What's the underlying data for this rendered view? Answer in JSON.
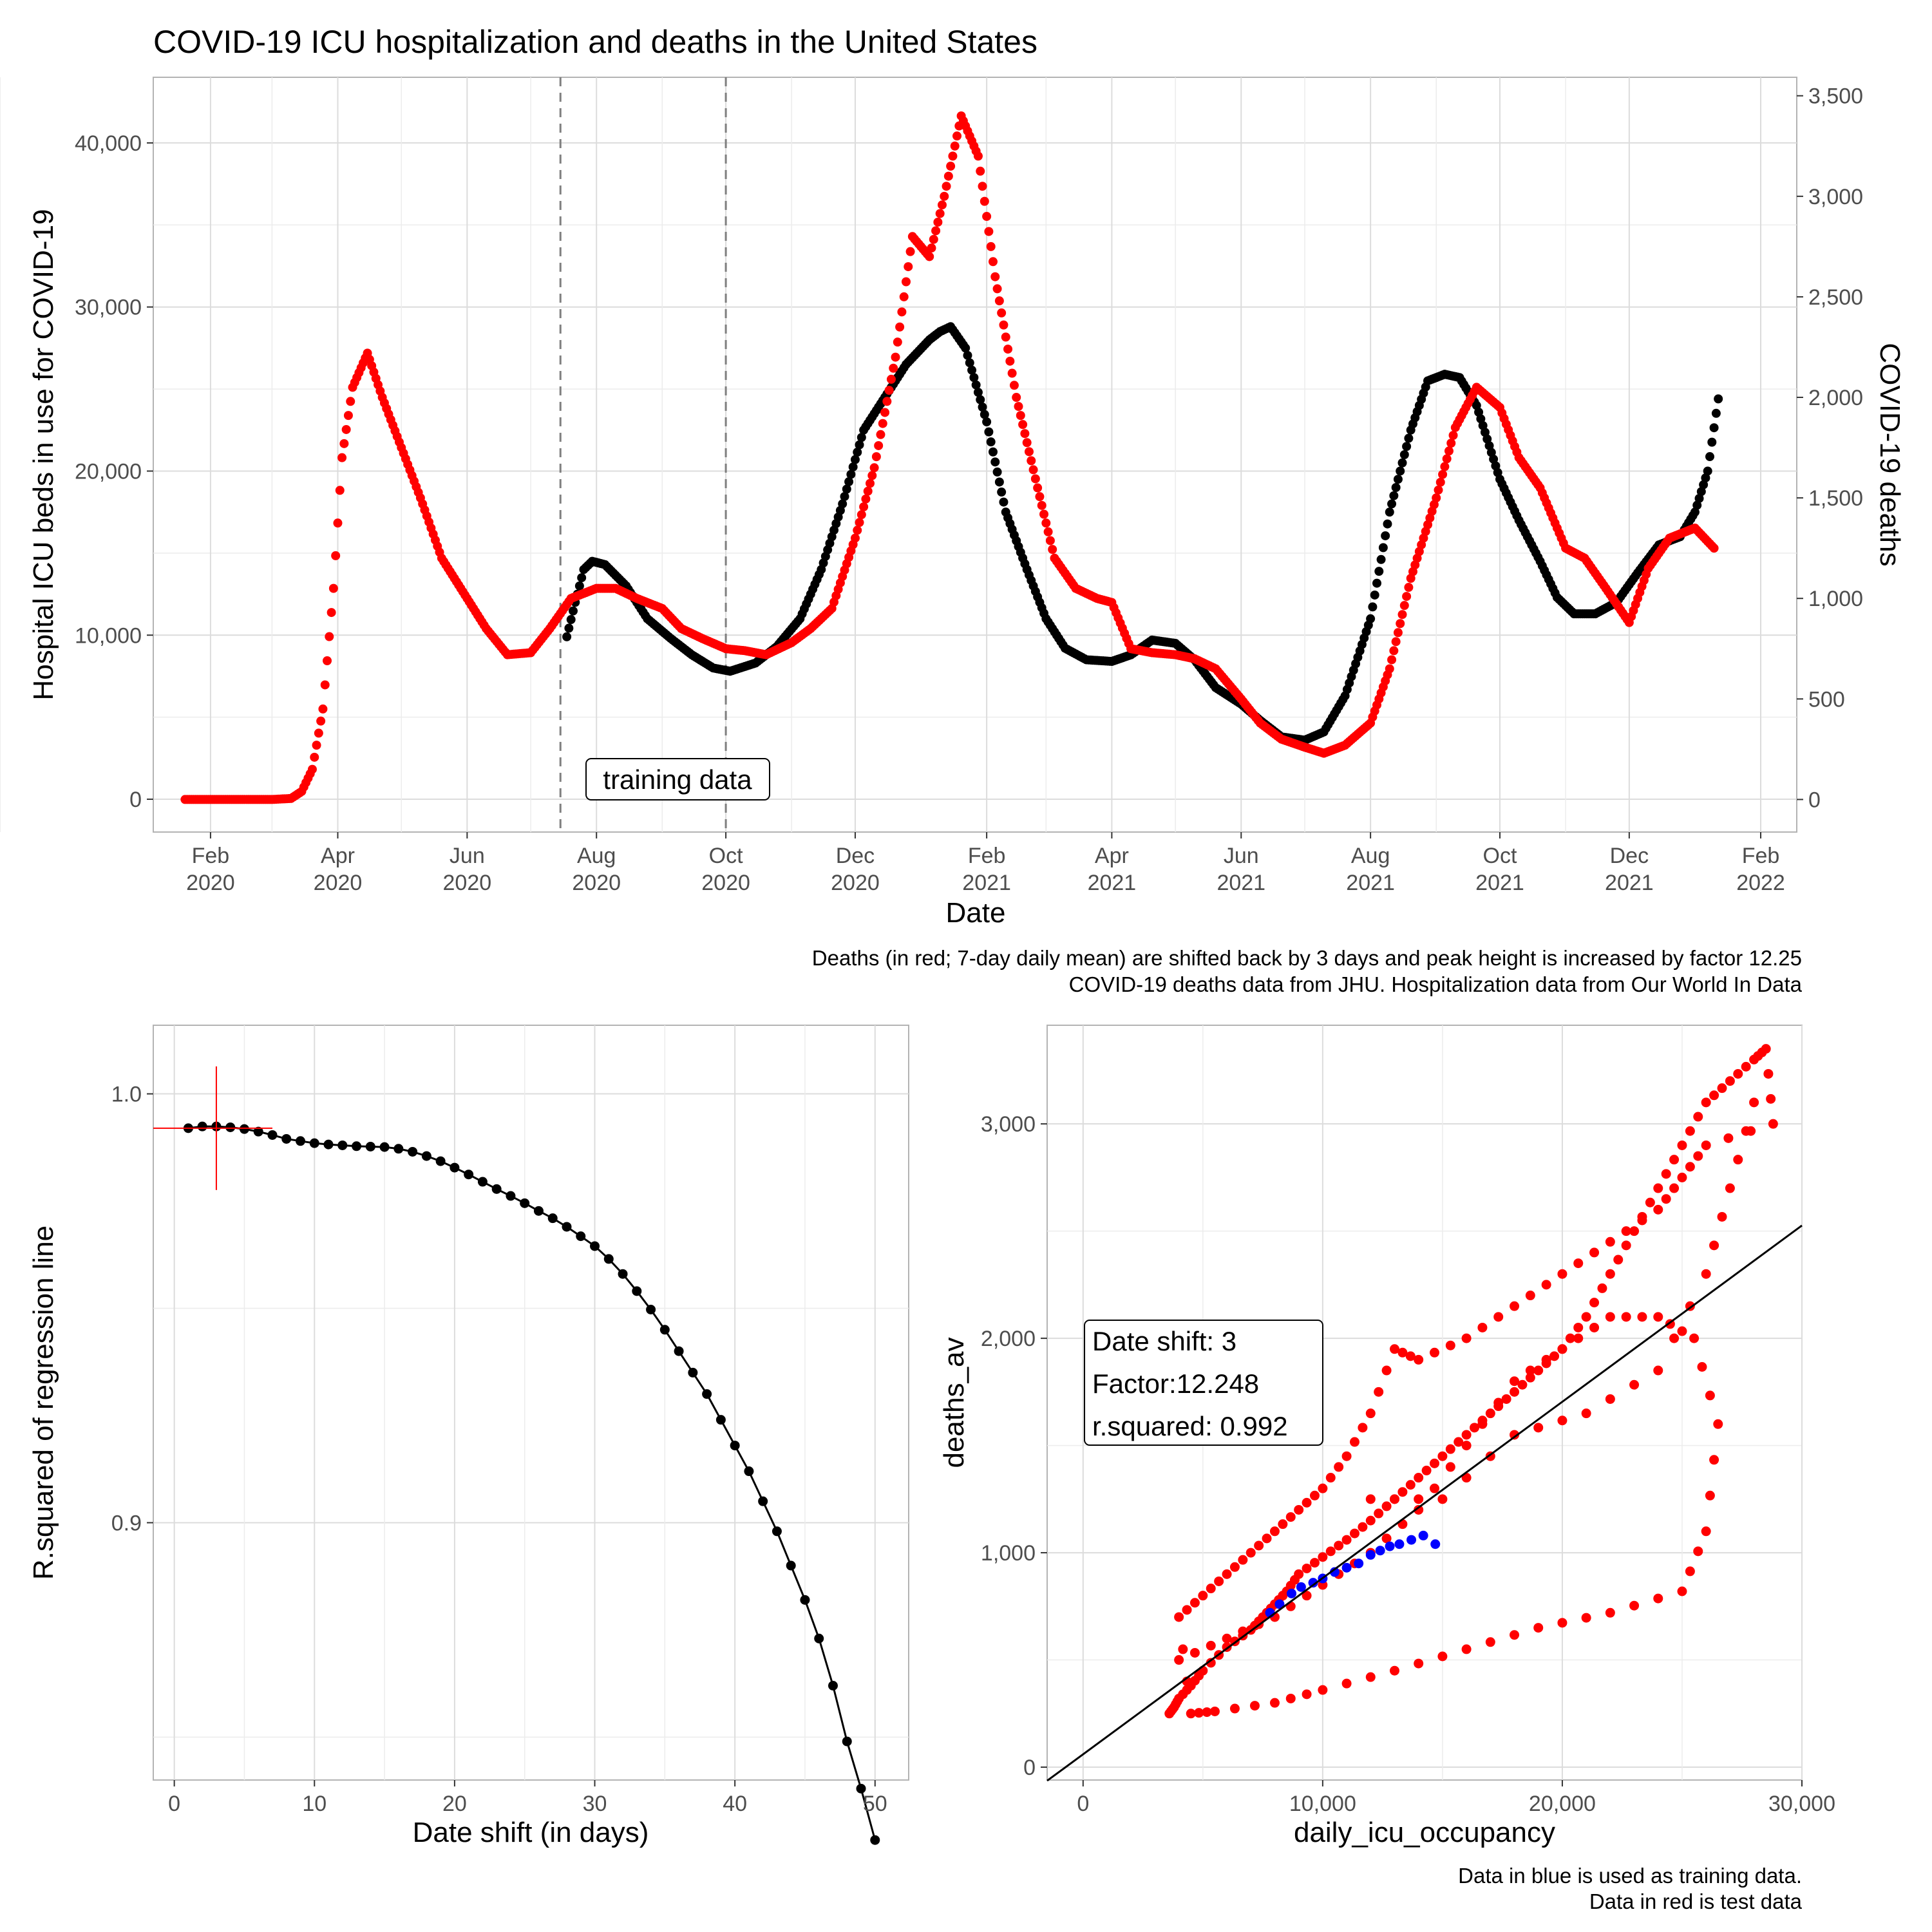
{
  "title": "COVID-19 ICU hospitalization and deaths in the United States",
  "top": {
    "xlabel": "Date",
    "ylabel_left": "Hospital ICU beds in use for COVID-19",
    "ylabel_right": "COVID-19 deaths",
    "left_ticks": [
      "0",
      "10,000",
      "20,000",
      "30,000",
      "40,000"
    ],
    "right_ticks": [
      "0",
      "500",
      "1,000",
      "1,500",
      "2,000",
      "2,500",
      "3,000",
      "3,500"
    ],
    "x_ticks": [
      {
        "m": "Feb",
        "y": "2020"
      },
      {
        "m": "Apr",
        "y": "2020"
      },
      {
        "m": "Jun",
        "y": "2020"
      },
      {
        "m": "Aug",
        "y": "2020"
      },
      {
        "m": "Oct",
        "y": "2020"
      },
      {
        "m": "Dec",
        "y": "2020"
      },
      {
        "m": "Feb",
        "y": "2021"
      },
      {
        "m": "Apr",
        "y": "2021"
      },
      {
        "m": "Jun",
        "y": "2021"
      },
      {
        "m": "Aug",
        "y": "2021"
      },
      {
        "m": "Oct",
        "y": "2021"
      },
      {
        "m": "Dec",
        "y": "2021"
      },
      {
        "m": "Feb",
        "y": "2022"
      }
    ],
    "annotation": "training data",
    "caption_line1": "Deaths (in red; 7-day daily mean) are shifted back by 3 days and peak height is increased by factor 12.25",
    "caption_line2": "COVID-19 deaths data from JHU. Hospitalization data from Our World In Data"
  },
  "bottom_left": {
    "xlabel": "Date shift (in days)",
    "ylabel": "R.squared of regression line",
    "x_ticks": [
      "0",
      "10",
      "20",
      "30",
      "40",
      "50"
    ],
    "y_ticks": [
      "0.9",
      "1.0"
    ]
  },
  "bottom_right": {
    "xlabel": "daily_icu_occupancy",
    "ylabel": "deaths_av",
    "x_ticks": [
      "0",
      "10,000",
      "20,000",
      "30,000"
    ],
    "y_ticks": [
      "0",
      "1,000",
      "2,000",
      "3,000"
    ],
    "box_line1": "Date shift: 3",
    "box_line2": "Factor:12.248",
    "box_line3": "r.squared: 0.992",
    "caption_line1": "Data in blue is used as training data.",
    "caption_line2": "Data in red is test data"
  },
  "colors": {
    "icu": "#000000",
    "deaths": "#ff0000",
    "training": "#0000ff",
    "grid": "#dcdcdc"
  },
  "chart_data": [
    {
      "type": "scatter",
      "title": "COVID-19 ICU hospitalization and deaths in the United States",
      "xlabel": "Date",
      "ylabel": "Hospital ICU beds in use for COVID-19",
      "ylabel_secondary": "COVID-19 deaths",
      "ylim": [
        -2000,
        44000
      ],
      "ylim_secondary": [
        -162,
        3592
      ],
      "xlim": [
        "2020-01-05",
        "2022-02-18"
      ],
      "training_window": [
        "2020-07-15",
        "2020-10-01"
      ],
      "series": [
        {
          "name": "ICU occupancy",
          "axis": "left",
          "x": [
            "2020-07-18",
            "2020-07-22",
            "2020-07-26",
            "2020-07-30",
            "2020-08-05",
            "2020-08-15",
            "2020-08-25",
            "2020-09-05",
            "2020-09-15",
            "2020-09-25",
            "2020-10-03",
            "2020-10-15",
            "2020-10-25",
            "2020-11-05",
            "2020-11-15",
            "2020-11-25",
            "2020-12-05",
            "2020-12-15",
            "2020-12-25",
            "2021-01-05",
            "2021-01-10",
            "2021-01-15",
            "2021-01-22",
            "2021-02-01",
            "2021-02-10",
            "2021-02-20",
            "2021-03-01",
            "2021-03-10",
            "2021-03-20",
            "2021-04-01",
            "2021-04-10",
            "2021-04-20",
            "2021-05-01",
            "2021-05-10",
            "2021-05-20",
            "2021-06-01",
            "2021-06-10",
            "2021-06-20",
            "2021-07-01",
            "2021-07-10",
            "2021-07-20",
            "2021-08-01",
            "2021-08-10",
            "2021-08-20",
            "2021-08-28",
            "2021-09-05",
            "2021-09-12",
            "2021-09-20",
            "2021-10-01",
            "2021-10-10",
            "2021-10-20",
            "2021-10-28",
            "2021-11-05",
            "2021-11-15",
            "2021-11-25",
            "2021-12-05",
            "2021-12-15",
            "2021-12-25",
            "2022-01-01",
            "2022-01-07",
            "2022-01-12"
          ],
          "values": [
            9900,
            12000,
            14000,
            14500,
            14300,
            13000,
            11000,
            9800,
            8800,
            8000,
            7800,
            8300,
            9300,
            11000,
            14000,
            18000,
            22500,
            24500,
            26500,
            28000,
            28500,
            28800,
            27500,
            23000,
            17500,
            14000,
            11000,
            9200,
            8500,
            8400,
            8800,
            9700,
            9500,
            8500,
            6800,
            5800,
            4800,
            3800,
            3600,
            4100,
            6300,
            11000,
            17500,
            22500,
            25500,
            25900,
            25700,
            24000,
            19500,
            17000,
            14500,
            12300,
            11300,
            11300,
            12000,
            13800,
            15500,
            16000,
            17500,
            20000,
            24400
          ]
        },
        {
          "name": "COVID-19 deaths (shifted, scaled)",
          "axis": "right",
          "x": [
            "2020-01-20",
            "2020-02-10",
            "2020-03-01",
            "2020-03-10",
            "2020-03-15",
            "2020-03-20",
            "2020-03-25",
            "2020-03-30",
            "2020-04-03",
            "2020-04-08",
            "2020-04-15",
            "2020-04-22",
            "2020-05-01",
            "2020-05-10",
            "2020-05-20",
            "2020-06-01",
            "2020-06-10",
            "2020-06-20",
            "2020-07-01",
            "2020-07-10",
            "2020-07-20",
            "2020-08-01",
            "2020-08-10",
            "2020-08-20",
            "2020-09-01",
            "2020-09-10",
            "2020-09-20",
            "2020-10-01",
            "2020-10-10",
            "2020-10-20",
            "2020-11-01",
            "2020-11-10",
            "2020-11-20",
            "2020-12-01",
            "2020-12-10",
            "2020-12-20",
            "2020-12-28",
            "2021-01-05",
            "2021-01-12",
            "2021-01-20",
            "2021-01-28",
            "2021-02-05",
            "2021-02-15",
            "2021-02-25",
            "2021-03-05",
            "2021-03-15",
            "2021-03-25",
            "2021-04-01",
            "2021-04-10",
            "2021-04-20",
            "2021-05-01",
            "2021-05-10",
            "2021-05-20",
            "2021-06-01",
            "2021-06-10",
            "2021-06-20",
            "2021-07-01",
            "2021-07-10",
            "2021-07-20",
            "2021-08-01",
            "2021-08-10",
            "2021-08-20",
            "2021-09-01",
            "2021-09-10",
            "2021-09-20",
            "2021-10-01",
            "2021-10-10",
            "2021-10-20",
            "2021-11-01",
            "2021-11-10",
            "2021-11-20",
            "2021-12-01",
            "2021-12-10",
            "2021-12-20",
            "2022-01-01",
            "2022-01-10"
          ],
          "values": [
            0,
            0,
            0,
            5,
            40,
            150,
            450,
            1050,
            1700,
            2050,
            2220,
            2000,
            1750,
            1500,
            1200,
            1000,
            850,
            720,
            730,
            850,
            1000,
            1050,
            1050,
            1000,
            950,
            850,
            800,
            750,
            740,
            720,
            780,
            850,
            950,
            1300,
            1650,
            2200,
            2800,
            2700,
            3000,
            3400,
            3200,
            2600,
            2000,
            1550,
            1200,
            1050,
            1000,
            980,
            750,
            730,
            720,
            700,
            650,
            500,
            380,
            300,
            260,
            230,
            270,
            380,
            650,
            1100,
            1500,
            1850,
            2050,
            1950,
            1700,
            1550,
            1250,
            1200,
            1050,
            880,
            1150,
            1300,
            1350,
            1250
          ]
        }
      ]
    },
    {
      "type": "line",
      "xlabel": "Date shift (in days)",
      "ylabel": "R.squared of regression line",
      "xlim": [
        -1.5,
        52.4
      ],
      "ylim": [
        0.84,
        1.016
      ],
      "highlight": {
        "x": 3,
        "y": 0.992
      },
      "x": [
        1,
        2,
        3,
        4,
        5,
        6,
        7,
        8,
        9,
        10,
        11,
        12,
        13,
        14,
        15,
        16,
        17,
        18,
        19,
        20,
        21,
        22,
        23,
        24,
        25,
        26,
        27,
        28,
        29,
        30,
        31,
        32,
        33,
        34,
        35,
        36,
        37,
        38,
        39,
        40,
        41,
        42,
        43,
        44,
        45,
        46,
        47,
        48,
        49,
        50
      ],
      "values": [
        0.992,
        0.9924,
        0.9924,
        0.9922,
        0.9918,
        0.9912,
        0.9904,
        0.9895,
        0.989,
        0.9885,
        0.9882,
        0.988,
        0.9878,
        0.9877,
        0.9876,
        0.9872,
        0.9865,
        0.9855,
        0.9843,
        0.9828,
        0.9812,
        0.9795,
        0.9778,
        0.9762,
        0.9745,
        0.9727,
        0.971,
        0.969,
        0.9668,
        0.9645,
        0.9615,
        0.958,
        0.954,
        0.9497,
        0.945,
        0.94,
        0.935,
        0.93,
        0.924,
        0.918,
        0.912,
        0.905,
        0.898,
        0.89,
        0.882,
        0.873,
        0.862,
        0.849,
        0.838,
        0.826
      ]
    },
    {
      "type": "scatter",
      "xlabel": "daily_icu_occupancy",
      "ylabel": "deaths_av",
      "xlim": [
        -1500,
        30000
      ],
      "ylim": [
        -60,
        3460
      ],
      "annotation": "Date shift: 3 / Factor:12.248 / r.squared: 0.992",
      "regression_line": {
        "slope": 0.0822,
        "intercept": 60
      },
      "series": [
        {
          "name": "Data in blue is used as training data.",
          "x": [
            7800,
            8200,
            8700,
            9100,
            9600,
            10000,
            10500,
            11000,
            11500,
            12000,
            12400,
            12800,
            13200,
            13700,
            14200,
            14700
          ],
          "values": [
            720,
            760,
            810,
            840,
            860,
            880,
            910,
            930,
            950,
            990,
            1010,
            1030,
            1040,
            1060,
            1080,
            1040
          ]
        },
        {
          "name": "Data in red is test data",
          "x": [
            3600,
            3800,
            4000,
            4500,
            5000,
            6000,
            7000,
            7500,
            8000,
            8500,
            9000,
            10000,
            11000,
            12000,
            13000,
            14000,
            15000,
            16000,
            17000,
            18000,
            19000,
            20000,
            21000,
            22000,
            23000,
            24000,
            25000,
            26000,
            27000,
            28000,
            28500,
            28800,
            26000,
            25000,
            24000,
            22000,
            20000,
            18000,
            16000,
            14000,
            13000,
            12000,
            11000,
            10000,
            9000,
            8000,
            7000,
            6000,
            5000,
            4000,
            4500,
            5500,
            8000,
            10000,
            13000,
            16000,
            19000,
            22000,
            25000,
            26000,
            26500,
            25500,
            24000,
            22000,
            20000,
            18000,
            16000,
            14000,
            12000,
            10000,
            8000,
            6000,
            4000,
            12000,
            15000,
            18000,
            21000,
            24000,
            26000,
            27000,
            28000
          ],
          "values": [
            250,
            280,
            320,
            380,
            450,
            560,
            640,
            700,
            760,
            820,
            900,
            980,
            1060,
            1150,
            1250,
            1350,
            1450,
            1550,
            1650,
            1750,
            1850,
            1950,
            2100,
            2300,
            2500,
            2700,
            2900,
            3100,
            3200,
            3300,
            3350,
            3000,
            2900,
            2750,
            2600,
            2450,
            2300,
            2150,
            2000,
            1900,
            1950,
            1650,
            1450,
            1300,
            1200,
            1100,
            1000,
            900,
            800,
            700,
            250,
            260,
            300,
            360,
            450,
            550,
            650,
            720,
            820,
            1100,
            1600,
            2000,
            2100,
            2100,
            1950,
            1800,
            1500,
            1200,
            1000,
            850,
            700,
            600,
            500,
            1250,
            1250,
            1550,
            1650,
            1850,
            2300,
            2700,
            3100
          ]
        }
      ]
    }
  ]
}
